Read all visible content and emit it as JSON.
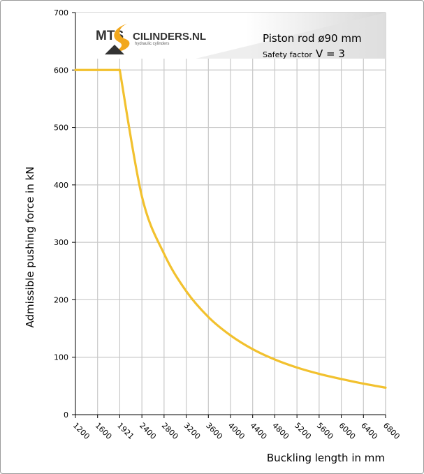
{
  "chart_data": {
    "type": "line",
    "title": "Piston rod ø90 mm",
    "safety_factor_label": "Safety factor",
    "safety_factor_value": "V = 3",
    "xlabel": "Buckling length in mm",
    "ylabel": "Admissible pushing force in kN",
    "x_ticks": [
      "1200",
      "1600",
      "1921",
      "2400",
      "2800",
      "3200",
      "3600",
      "4000",
      "4400",
      "4800",
      "5200",
      "5600",
      "6000",
      "6400",
      "6800"
    ],
    "y_ticks": [
      "0",
      "100",
      "200",
      "300",
      "400",
      "500",
      "600",
      "700"
    ],
    "ylim": [
      0,
      700
    ],
    "grid": true,
    "series": [
      {
        "values": [
          600,
          600,
          600,
          380,
          280,
          215,
          170,
          138,
          114,
          96,
          82,
          71,
          62,
          54,
          47
        ]
      }
    ],
    "line_color": "#f2c12e",
    "grid_color": "#c8c8c8"
  },
  "logo": {
    "brand_left": "MTS",
    "brand_right": "CILINDERS.NL",
    "tagline": "hydraulic cylinders"
  }
}
